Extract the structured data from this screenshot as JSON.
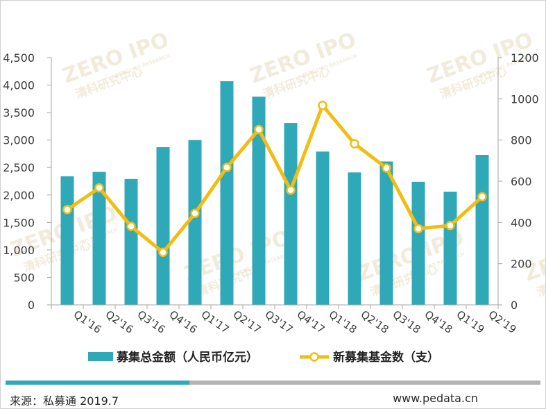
{
  "chart_data": {
    "type": "bar+line",
    "categories": [
      "Q1'16",
      "Q2'16",
      "Q3'16",
      "Q4'16",
      "Q1'17",
      "Q2'17",
      "Q3'17",
      "Q4'17",
      "Q1'18",
      "Q2'18",
      "Q3'18",
      "Q4'18",
      "Q1'19",
      "Q2'19"
    ],
    "series": [
      {
        "name": "募集总金额（人民币亿元）",
        "type": "bar",
        "axis": "left",
        "color": "#2fa8b8",
        "values": [
          2340,
          2420,
          2290,
          2870,
          3000,
          4070,
          3790,
          3310,
          2790,
          2410,
          2610,
          2240,
          2060,
          2730
        ]
      },
      {
        "name": "新募集基金数（支）",
        "type": "line",
        "axis": "right",
        "color": "#f2bd12",
        "values": [
          462,
          568,
          381,
          255,
          444,
          667,
          851,
          557,
          968,
          782,
          664,
          370,
          385,
          525
        ]
      }
    ],
    "y_left": {
      "min": 0,
      "max": 4500,
      "ticks": [
        0,
        500,
        1000,
        1500,
        2000,
        2500,
        3000,
        3500,
        4000,
        4500
      ],
      "tick_labels": [
        "0",
        "500",
        "1,000",
        "1,500",
        "2,000",
        "2,500",
        "3,000",
        "3,500",
        "4,000",
        "4,500"
      ]
    },
    "y_right": {
      "min": 0,
      "max": 1200,
      "ticks": [
        0,
        200,
        400,
        600,
        800,
        1000,
        1200
      ],
      "tick_labels": [
        "0",
        "200",
        "400",
        "600",
        "800",
        "1000",
        "1200"
      ]
    },
    "grid": false,
    "legend_position": "bottom"
  },
  "watermark": {
    "brand": "ZERO",
    "brand2": "IPO",
    "sub_cn": "清科研究中心",
    "sub_en": "ZERO2IPO RESEARCH"
  },
  "footer": {
    "source": "来源：私募通 2019.7",
    "website": "www.pedata.cn"
  },
  "colors": {
    "bar": "#2fa8b8",
    "line": "#f2bd12",
    "footer_bar_left": "#2fa8b8",
    "footer_bar_right": "#b3b3b3"
  }
}
